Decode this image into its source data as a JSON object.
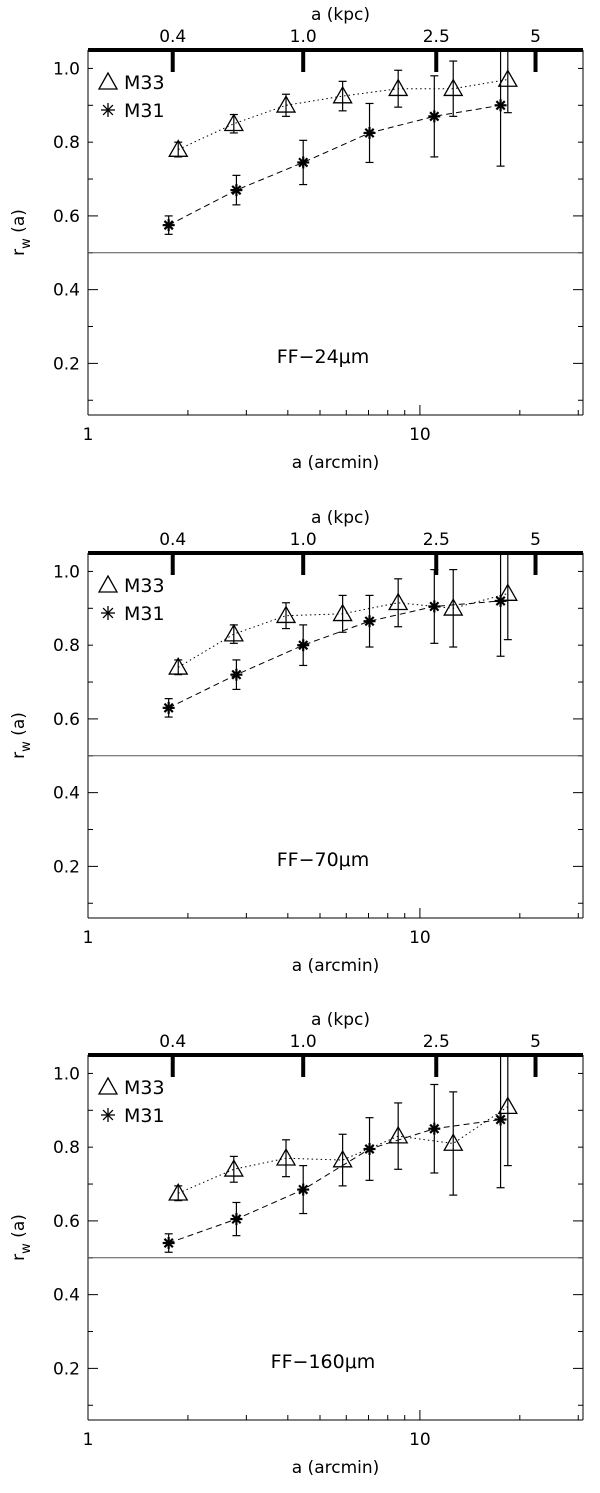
{
  "chart_data": [
    {
      "type": "scatter",
      "title": "",
      "annotation": "FF−24μm",
      "xlabel": "a (arcmin)",
      "ylabel": "r_w (a)",
      "x2label": "a (kpc)",
      "xscale": "log",
      "xlim": [
        1,
        31
      ],
      "ylim": [
        0.06,
        1.05
      ],
      "yticks": [
        0.2,
        0.4,
        0.6,
        0.8,
        1.0
      ],
      "ytick_labels": [
        "0.2",
        "0.4",
        "0.6",
        "0.8",
        "1.0"
      ],
      "xticks": [
        1,
        10
      ],
      "xtick_labels": [
        "1",
        "10"
      ],
      "top_ticks": [
        {
          "label": "0.4",
          "x": 1.8
        },
        {
          "label": "1.0",
          "x": 4.45
        },
        {
          "label": "2.5",
          "x": 11.2
        },
        {
          "label": "5",
          "x": 22.3
        }
      ],
      "reference_line": 0.5,
      "legend_position": "top-left",
      "series": [
        {
          "name": "M33",
          "marker": "triangle",
          "line": "dotted",
          "x": [
            1.87,
            2.75,
            3.95,
            5.85,
            8.6,
            12.6,
            18.4
          ],
          "y": [
            0.78,
            0.85,
            0.9,
            0.925,
            0.945,
            0.945,
            0.97
          ],
          "err": [
            0.02,
            0.025,
            0.03,
            0.04,
            0.05,
            0.075,
            0.09
          ]
        },
        {
          "name": "M31",
          "marker": "asterisk",
          "line": "dashed",
          "x": [
            1.75,
            2.8,
            4.45,
            7.05,
            11.05,
            17.5
          ],
          "y": [
            0.575,
            0.67,
            0.745,
            0.825,
            0.87,
            0.9
          ],
          "err": [
            0.025,
            0.04,
            0.06,
            0.08,
            0.11,
            0.165
          ]
        }
      ]
    },
    {
      "type": "scatter",
      "title": "",
      "annotation": "FF−70μm",
      "xlabel": "a (arcmin)",
      "ylabel": "r_w (a)",
      "x2label": "a (kpc)",
      "xscale": "log",
      "xlim": [
        1,
        31
      ],
      "ylim": [
        0.06,
        1.05
      ],
      "yticks": [
        0.2,
        0.4,
        0.6,
        0.8,
        1.0
      ],
      "ytick_labels": [
        "0.2",
        "0.4",
        "0.6",
        "0.8",
        "1.0"
      ],
      "xticks": [
        1,
        10
      ],
      "xtick_labels": [
        "1",
        "10"
      ],
      "top_ticks": [
        {
          "label": "0.4",
          "x": 1.8
        },
        {
          "label": "1.0",
          "x": 4.45
        },
        {
          "label": "2.5",
          "x": 11.2
        },
        {
          "label": "5",
          "x": 22.3
        }
      ],
      "reference_line": 0.5,
      "legend_position": "top-left",
      "series": [
        {
          "name": "M33",
          "marker": "triangle",
          "line": "dotted",
          "x": [
            1.87,
            2.75,
            3.95,
            5.85,
            8.6,
            12.6,
            18.4
          ],
          "y": [
            0.74,
            0.83,
            0.88,
            0.885,
            0.915,
            0.9,
            0.94
          ],
          "err": [
            0.02,
            0.025,
            0.035,
            0.05,
            0.065,
            0.105,
            0.125
          ]
        },
        {
          "name": "M31",
          "marker": "asterisk",
          "line": "dashed",
          "x": [
            1.75,
            2.8,
            4.45,
            7.05,
            11.05,
            17.5
          ],
          "y": [
            0.63,
            0.72,
            0.8,
            0.865,
            0.905,
            0.92
          ],
          "err": [
            0.025,
            0.04,
            0.055,
            0.07,
            0.1,
            0.15
          ]
        }
      ]
    },
    {
      "type": "scatter",
      "title": "",
      "annotation": "FF−160μm",
      "xlabel": "a (arcmin)",
      "ylabel": "r_w (a)",
      "x2label": "a (kpc)",
      "xscale": "log",
      "xlim": [
        1,
        31
      ],
      "ylim": [
        0.06,
        1.05
      ],
      "yticks": [
        0.2,
        0.4,
        0.6,
        0.8,
        1.0
      ],
      "ytick_labels": [
        "0.2",
        "0.4",
        "0.6",
        "0.8",
        "1.0"
      ],
      "xticks": [
        1,
        10
      ],
      "xtick_labels": [
        "1",
        "10"
      ],
      "top_ticks": [
        {
          "label": "0.4",
          "x": 1.8
        },
        {
          "label": "1.0",
          "x": 4.45
        },
        {
          "label": "2.5",
          "x": 11.2
        },
        {
          "label": "5",
          "x": 22.3
        }
      ],
      "reference_line": 0.5,
      "legend_position": "top-left",
      "series": [
        {
          "name": "M33",
          "marker": "triangle",
          "line": "dotted",
          "x": [
            1.87,
            2.75,
            3.95,
            5.85,
            8.6,
            12.6,
            18.4
          ],
          "y": [
            0.675,
            0.74,
            0.77,
            0.765,
            0.83,
            0.81,
            0.91
          ],
          "err": [
            0.02,
            0.035,
            0.05,
            0.07,
            0.09,
            0.14,
            0.16
          ]
        },
        {
          "name": "M31",
          "marker": "asterisk",
          "line": "dashed",
          "x": [
            1.75,
            2.8,
            4.45,
            7.05,
            11.05,
            17.5
          ],
          "y": [
            0.54,
            0.605,
            0.685,
            0.795,
            0.85,
            0.875
          ],
          "err": [
            0.025,
            0.045,
            0.065,
            0.085,
            0.12,
            0.185
          ]
        }
      ]
    }
  ]
}
